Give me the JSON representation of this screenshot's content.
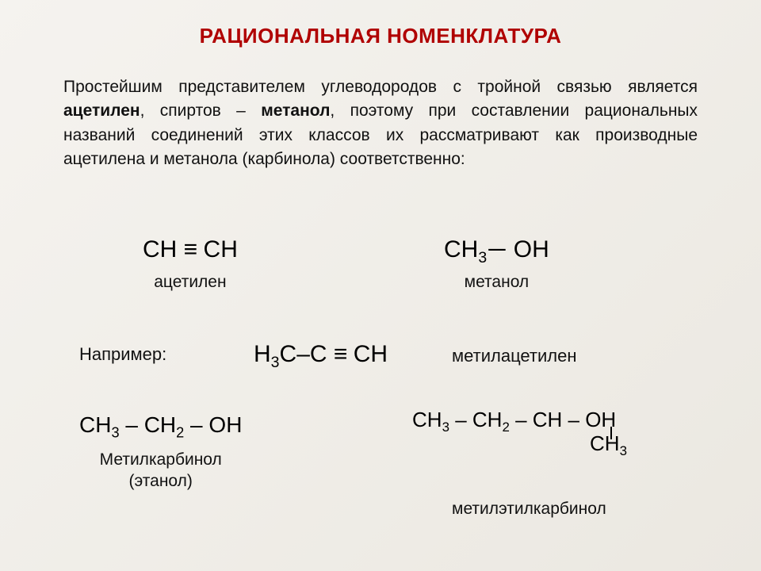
{
  "colors": {
    "title": "#b00000",
    "text": "#111111",
    "formula": "#000000",
    "bg_from": "#f5f3ef",
    "bg_to": "#ebe8e1"
  },
  "fonts": {
    "title_size": 26,
    "body_size": 21,
    "formula_size_large": 30,
    "formula_size_med": 28,
    "formula_size_small": 26
  },
  "title": "РАЦИОНАЛЬНАЯ НОМЕНКЛАТУРА",
  "intro": {
    "pre": "Простейшим представителем углеводородов с тройной связью является ",
    "b1": "ацетилен",
    "mid1": ", спиртов – ",
    "b2": "метанол",
    "mid2": ", поэтому при составлении рациональных названий соединений этих классов их рассматривают как производные ацетилена и метанола (карбинола) соответственно:"
  },
  "row1": {
    "acetylene": {
      "formula_html": "CH <span class=\"triple\">≡</span> CH",
      "label": "ацетилен"
    },
    "methanol": {
      "formula_html": "CH<sub>3</sub><span class=\"dash\">─</span> OH",
      "label": "метанол"
    }
  },
  "example": {
    "label": "Например:",
    "methylacet": {
      "formula_html": "H<sub>3</sub>C–C <span class=\"triple\">≡</span> CH",
      "label": "метилацетилен"
    }
  },
  "bottom": {
    "ethanol": {
      "formula_html": "CH<sub>3</sub> – CH<sub>2</sub> – OH",
      "label1": "Метилкарбинол",
      "label2": "(этанол)"
    },
    "butanol": {
      "main_html": "CH<sub>3</sub> – CH<sub>2</sub> – CH – OH",
      "branch_html": "CH<sub>3</sub>",
      "label": "метилэтилкарбинол"
    }
  }
}
